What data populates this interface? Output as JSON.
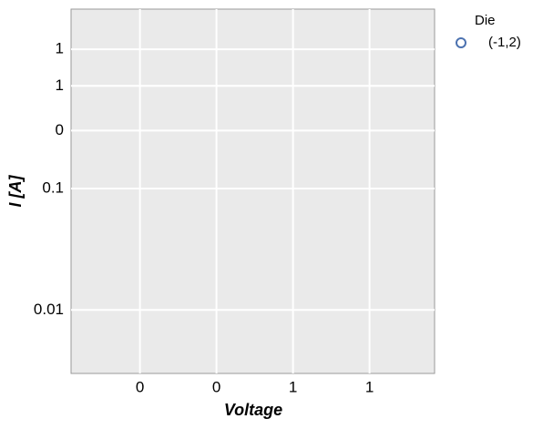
{
  "chart_data": {
    "type": "scatter",
    "xlabel": "Voltage",
    "ylabel": "I [A]",
    "xlim": [
      0.02,
      0.97
    ],
    "xticks": [
      {
        "value": 0.2,
        "label": "0"
      },
      {
        "value": 0.4,
        "label": "0"
      },
      {
        "value": 0.6,
        "label": "1"
      },
      {
        "value": 0.8,
        "label": "1"
      }
    ],
    "ylim": [
      0.003,
      3
    ],
    "yscale": "log",
    "yticks": [
      {
        "value": 0.01,
        "label": "0.01"
      },
      {
        "value": 0.1,
        "label": "0.1"
      },
      {
        "value": 0.3,
        "label": "0"
      },
      {
        "value": 0.7,
        "label": "1"
      },
      {
        "value": 1.4,
        "label": "1"
      }
    ],
    "grid": true,
    "legend_title": "Die",
    "series": [
      {
        "name": "(-1,2)",
        "color": "#4c72b0",
        "x": [],
        "values": []
      }
    ]
  }
}
